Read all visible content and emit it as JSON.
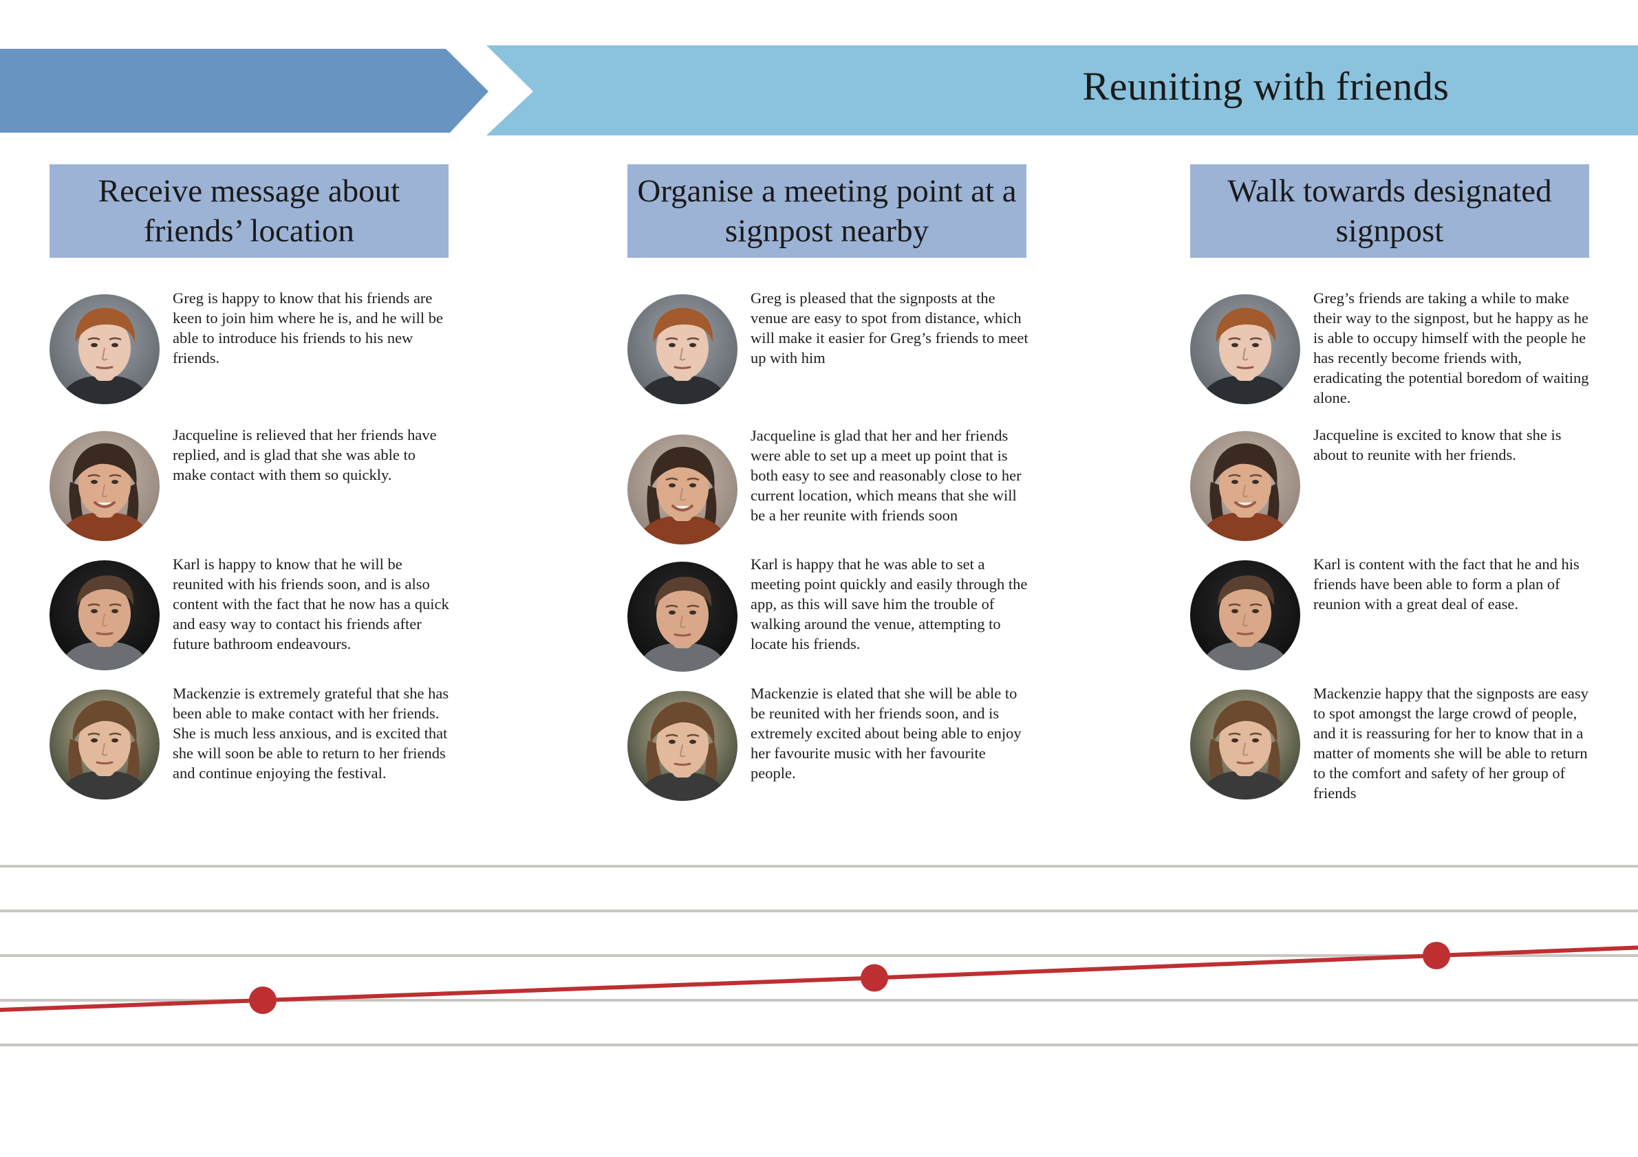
{
  "banner": {
    "title": "Reuniting with friends",
    "colors": {
      "dark_arrow": "#6794c1",
      "light_band": "#8bc2de"
    }
  },
  "stages": [
    {
      "title": "Receive message about friends’ location",
      "personas": [
        {
          "name": "Greg",
          "text": "Greg is happy to know that his friends are keen to join him where he is, and he will be able to introduce his friends to his new friends."
        },
        {
          "name": "Jacqueline",
          "text": "Jacqueline is relieved that her friends have replied, and is glad that she was able to make contact with them so quickly."
        },
        {
          "name": "Karl",
          "text": "Karl is happy to know that he will be reunited with his friends soon, and is also content with the fact that he now has a quick and easy way to contact his friends after future bathroom endeavours."
        },
        {
          "name": "Mackenzie",
          "text": "Mackenzie is extremely grateful that she has been able to make contact with her friends. She is much less anxious, and is excited that she will soon be able to return to her friends and continue enjoying the festival."
        }
      ]
    },
    {
      "title": "Organise a meeting point at a signpost nearby",
      "personas": [
        {
          "name": "Greg",
          "text": "Greg is pleased that the signposts at the venue are easy to spot from distance, which will make it easier for Greg’s friends to meet up with him"
        },
        {
          "name": "Jacqueline",
          "text": "Jacqueline is glad that her and her friends were able to set up a meet up point that is both easy to see and reasonably close to her current location, which means that she will be a her reunite with friends soon"
        },
        {
          "name": "Karl",
          "text": "Karl is happy that he was able to set a meeting point quickly and easily through the app, as this will save him the trouble of walking around the venue, attempting to locate his friends."
        },
        {
          "name": "Mackenzie",
          "text": "Mackenzie is elated that she will be able to be reunited with her friends soon, and is extremely excited about being able to enjoy her favourite music with her favourite people."
        }
      ]
    },
    {
      "title": "Walk towards designated signpost",
      "personas": [
        {
          "name": "Greg",
          "text": "Greg’s friends are taking a while to make their way to the signpost, but he happy as he is able to occupy himself with the people he has recently become friends with, eradicating the potential boredom of waiting alone."
        },
        {
          "name": "Jacqueline",
          "text": "Jacqueline is excited to know that she is about to reunite with her friends."
        },
        {
          "name": "Karl",
          "text": "Karl is content with the fact that he and his friends have been able to form a plan of reunion with a great deal of ease."
        },
        {
          "name": "Mackenzie",
          "text": "Mackenzie happy that the signposts are easy to spot amongst the large crowd of people, and it is reassuring for her to know that in a matter of moments she will be able to return to the comfort and safety of her group of friends"
        }
      ]
    }
  ],
  "emotion_graph": {
    "levels": 5,
    "points": [
      {
        "stage": 1,
        "level": 2.0
      },
      {
        "stage": 2,
        "level": 2.5
      },
      {
        "stage": 3,
        "level": 3.0
      }
    ],
    "colors": {
      "line": "#be2f32",
      "grid": "#c9c6c1"
    }
  }
}
